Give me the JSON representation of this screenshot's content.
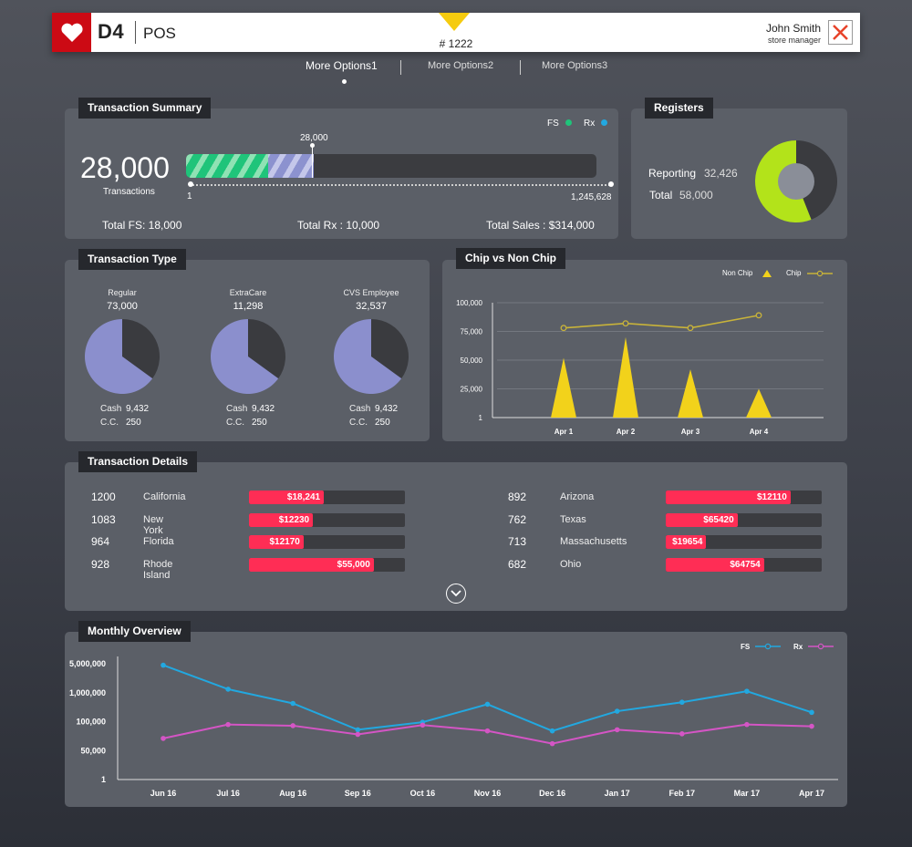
{
  "header": {
    "brand": "D4",
    "app_name": "POS",
    "store_number": "# 1222",
    "user_name": "John Smith",
    "user_role": "store manager",
    "brand_color": "#cc0a14"
  },
  "nav": {
    "items": [
      "More Options1",
      "More Options2",
      "More Options3"
    ],
    "active_index": 0
  },
  "transaction_summary": {
    "title": "Transaction Summary",
    "legend": {
      "fs": "FS",
      "rx": "Rx"
    },
    "total_transactions": "28,000",
    "transactions_label": "Transactions",
    "marker_label": "28,000",
    "range_min": "1",
    "range_max": "1,245,628",
    "fs_fraction": 0.2,
    "rx_fraction": 0.11,
    "total_fs": "Total FS: 18,000",
    "total_rx": "Total Rx : 10,000",
    "total_sales": "Total Sales : $314,000"
  },
  "registers": {
    "title": "Registers",
    "reporting_label": "Reporting",
    "reporting_value": "32,426",
    "total_label": "Total",
    "total_value": "58,000",
    "reporting_fraction": 0.56,
    "colors": {
      "reporting": "#b3e31a",
      "other": "#3a3b3f",
      "center": "#8a8e98"
    }
  },
  "transaction_type": {
    "title": "Transaction Type",
    "items": [
      {
        "name": "Regular",
        "total": "73,000",
        "cash_label": "Cash",
        "cash": "9,432",
        "cc_label": "C.C.",
        "cc": "250",
        "share": 0.65
      },
      {
        "name": "ExtraCare",
        "total": "11,298",
        "cash_label": "Cash",
        "cash": "9,432",
        "cc_label": "C.C.",
        "cc": "250",
        "share": 0.65
      },
      {
        "name": "CVS Employee",
        "total": "32,537",
        "cash_label": "Cash",
        "cash": "9,432",
        "cc_label": "C.C.",
        "cc": "250",
        "share": 0.65
      }
    ],
    "colors": {
      "main": "#8b8fcd",
      "other": "#3a3b3f"
    }
  },
  "transaction_details": {
    "title": "Transaction Details",
    "rows": [
      {
        "num": "1200",
        "state": "California",
        "amount": "$18,241",
        "fill": 0.48
      },
      {
        "num": "1083",
        "state": "New York",
        "amount": "$12230",
        "fill": 0.41
      },
      {
        "num": "964",
        "state": "Florida",
        "amount": "$12170",
        "fill": 0.35
      },
      {
        "num": "928",
        "state": "Rhode Island",
        "amount": "$55,000",
        "fill": 0.8
      },
      {
        "num": "892",
        "state": "Arizona",
        "amount": "$12110",
        "fill": 0.8
      },
      {
        "num": "762",
        "state": "Texas",
        "amount": "$65420",
        "fill": 0.46
      },
      {
        "num": "713",
        "state": "Massachusetts",
        "amount": "$19654",
        "fill": 0.26
      },
      {
        "num": "682",
        "state": "Ohio",
        "amount": "$64754",
        "fill": 0.63
      }
    ]
  },
  "chart_data": [
    {
      "type": "bar",
      "title": "Chip vs Non Chip",
      "categories": [
        "Apr 1",
        "Apr 2",
        "Apr 3",
        "Apr 4"
      ],
      "y_ticks": [
        "100,000",
        "75,000",
        "50,000",
        "25,000",
        "1"
      ],
      "ylim": [
        0,
        100000
      ],
      "series": [
        {
          "name": "Non Chip",
          "kind": "triangle",
          "color": "#f2d21b",
          "values": [
            52000,
            70000,
            42000,
            25000
          ]
        },
        {
          "name": "Chip",
          "kind": "line",
          "color": "#c8b33a",
          "values": [
            78000,
            82000,
            78000,
            89000
          ]
        }
      ]
    },
    {
      "type": "line",
      "title": "Monthly Overview",
      "categories": [
        "Jun 16",
        "Jul 16",
        "Aug 16",
        "Sep 16",
        "Oct 16",
        "Nov 16",
        "Dec 16",
        "Jan 17",
        "Feb 17",
        "Mar 17",
        "Apr 17"
      ],
      "y_ticks": [
        "5,000,000",
        "1,000,000",
        "100,000",
        "50,000",
        "1"
      ],
      "y_scale": "tick_index",
      "series": [
        {
          "name": "FS",
          "color": "#22a8e0",
          "values": [
            0.05,
            0.88,
            1.37,
            2.28,
            2.02,
            1.4,
            2.32,
            1.64,
            1.33,
            0.95,
            1.68
          ]
        },
        {
          "name": "Rx",
          "color": "#d455c5",
          "values": [
            2.58,
            2.1,
            2.14,
            2.44,
            2.12,
            2.32,
            2.76,
            2.28,
            2.42,
            2.1,
            2.16
          ]
        }
      ]
    }
  ]
}
